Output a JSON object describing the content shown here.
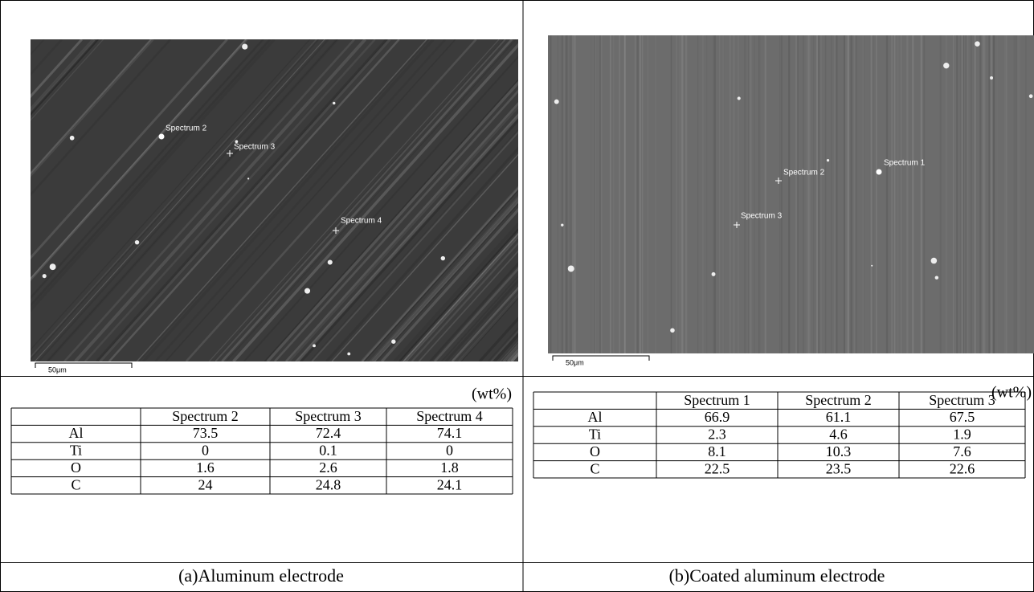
{
  "panels": [
    {
      "image": {
        "annotations": [
          "Spectrum 2",
          "Spectrum 3",
          "Spectrum 4"
        ],
        "scale_bar": "50μm"
      },
      "unit": "(wt%)",
      "table": {
        "header": [
          "Spectrum 2",
          "Spectrum 3",
          "Spectrum 4"
        ],
        "rows": [
          [
            "Al",
            73.5,
            72.4,
            74.1
          ],
          [
            "Ti",
            0,
            0.1,
            0
          ],
          [
            "O",
            1.6,
            2.6,
            1.8
          ],
          [
            "C",
            24,
            24.8,
            24.1
          ]
        ]
      },
      "caption": "(a)Aluminum electrode"
    },
    {
      "image": {
        "annotations": [
          "Spectrum 1",
          "Spectrum 2",
          "Spectrum 3"
        ],
        "scale_bar": "50μm"
      },
      "unit": "(wt%)",
      "table": {
        "header": [
          "Spectrum 1",
          "Spectrum 2",
          "Spectrum 3"
        ],
        "rows": [
          [
            "Al",
            66.9,
            61.1,
            67.5
          ],
          [
            "Ti",
            2.3,
            4.6,
            1.9
          ],
          [
            "O",
            8.1,
            10.3,
            7.6
          ],
          [
            "C",
            22.5,
            23.5,
            22.6
          ]
        ]
      },
      "caption": "(b)Coated aluminum electrode"
    }
  ]
}
